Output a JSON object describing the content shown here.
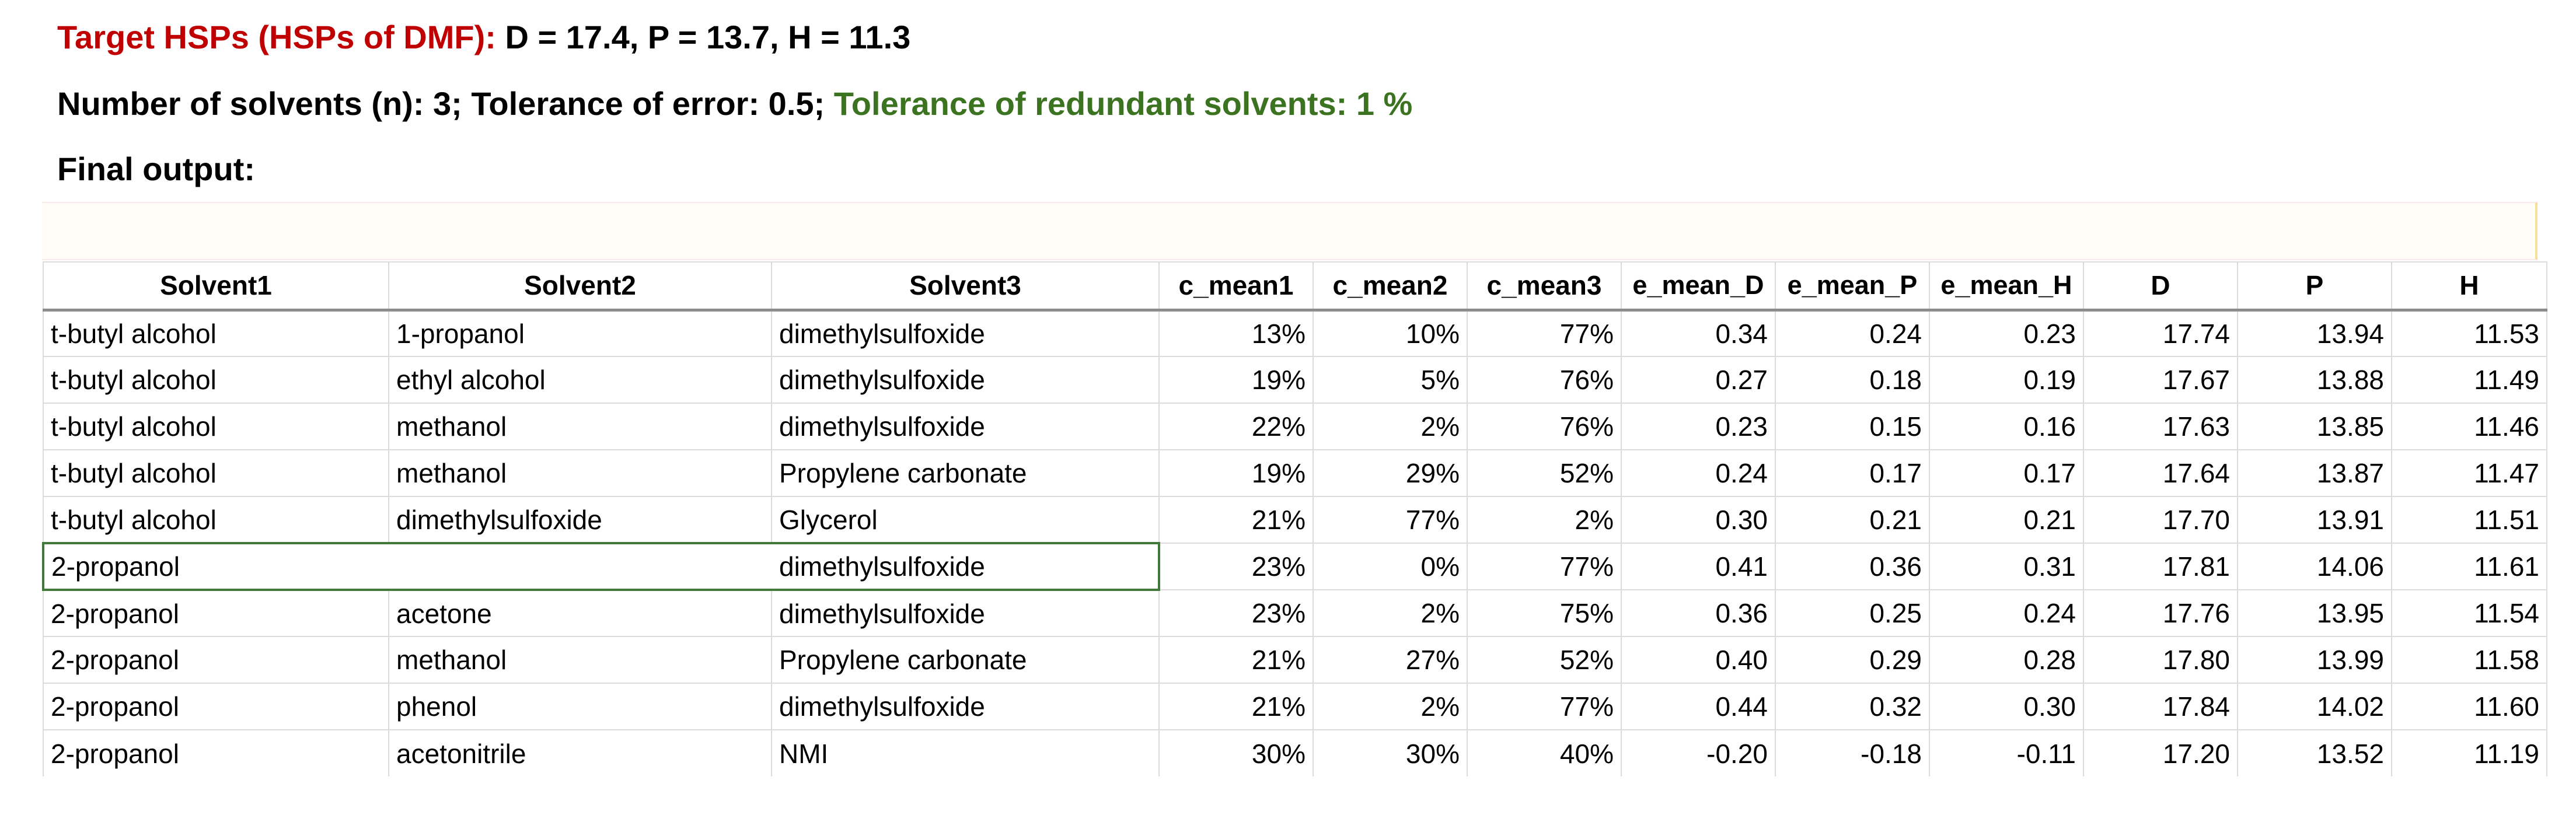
{
  "header": {
    "target_label": "Target HSPs (HSPs of DMF):",
    "target_values": "D = 17.4, P = 13.7, H = 11.3",
    "params_black": "Number of solvents (n): 3; Tolerance of error: 0.5;",
    "params_green": "Tolerance of redundant solvents: 1 %",
    "final_output_label": "Final output:"
  },
  "colors": {
    "target_label": "#c00000",
    "params_green": "#3b7320",
    "active_cell_border": "#3f7a3a"
  },
  "table": {
    "columns": [
      "Solvent1",
      "Solvent2",
      "Solvent3",
      "c_mean1",
      "c_mean2",
      "c_mean3",
      "e_mean_D",
      "e_mean_P",
      "e_mean_H",
      "D",
      "P",
      "H"
    ],
    "rows": [
      [
        "t-butyl alcohol",
        "1-propanol",
        "dimethylsulfoxide",
        "13%",
        "10%",
        "77%",
        "0.34",
        "0.24",
        "0.23",
        "17.74",
        "13.94",
        "11.53"
      ],
      [
        "t-butyl alcohol",
        "ethyl alcohol",
        "dimethylsulfoxide",
        "19%",
        "5%",
        "76%",
        "0.27",
        "0.18",
        "0.19",
        "17.67",
        "13.88",
        "11.49"
      ],
      [
        "t-butyl alcohol",
        "methanol",
        "dimethylsulfoxide",
        "22%",
        "2%",
        "76%",
        "0.23",
        "0.15",
        "0.16",
        "17.63",
        "13.85",
        "11.46"
      ],
      [
        "t-butyl alcohol",
        "methanol",
        "Propylene carbonate",
        "19%",
        "29%",
        "52%",
        "0.24",
        "0.17",
        "0.17",
        "17.64",
        "13.87",
        "11.47"
      ],
      [
        "t-butyl alcohol",
        "dimethylsulfoxide",
        "Glycerol",
        "21%",
        "77%",
        "2%",
        "0.30",
        "0.21",
        "0.21",
        "17.70",
        "13.91",
        "11.51"
      ],
      [
        "2-propanol",
        "",
        "dimethylsulfoxide",
        "23%",
        "0%",
        "77%",
        "0.41",
        "0.36",
        "0.31",
        "17.81",
        "14.06",
        "11.61"
      ],
      [
        "2-propanol",
        "acetone",
        "dimethylsulfoxide",
        "23%",
        "2%",
        "75%",
        "0.36",
        "0.25",
        "0.24",
        "17.76",
        "13.95",
        "11.54"
      ],
      [
        "2-propanol",
        "methanol",
        "Propylene carbonate",
        "21%",
        "27%",
        "52%",
        "0.40",
        "0.29",
        "0.28",
        "17.80",
        "13.99",
        "11.58"
      ],
      [
        "2-propanol",
        "phenol",
        "dimethylsulfoxide",
        "21%",
        "2%",
        "77%",
        "0.44",
        "0.32",
        "0.30",
        "17.84",
        "14.02",
        "11.60"
      ],
      [
        "2-propanol",
        "acetonitrile",
        "NMI",
        "30%",
        "30%",
        "40%",
        "-0.20",
        "-0.18",
        "-0.11",
        "17.20",
        "13.52",
        "11.19"
      ]
    ]
  }
}
